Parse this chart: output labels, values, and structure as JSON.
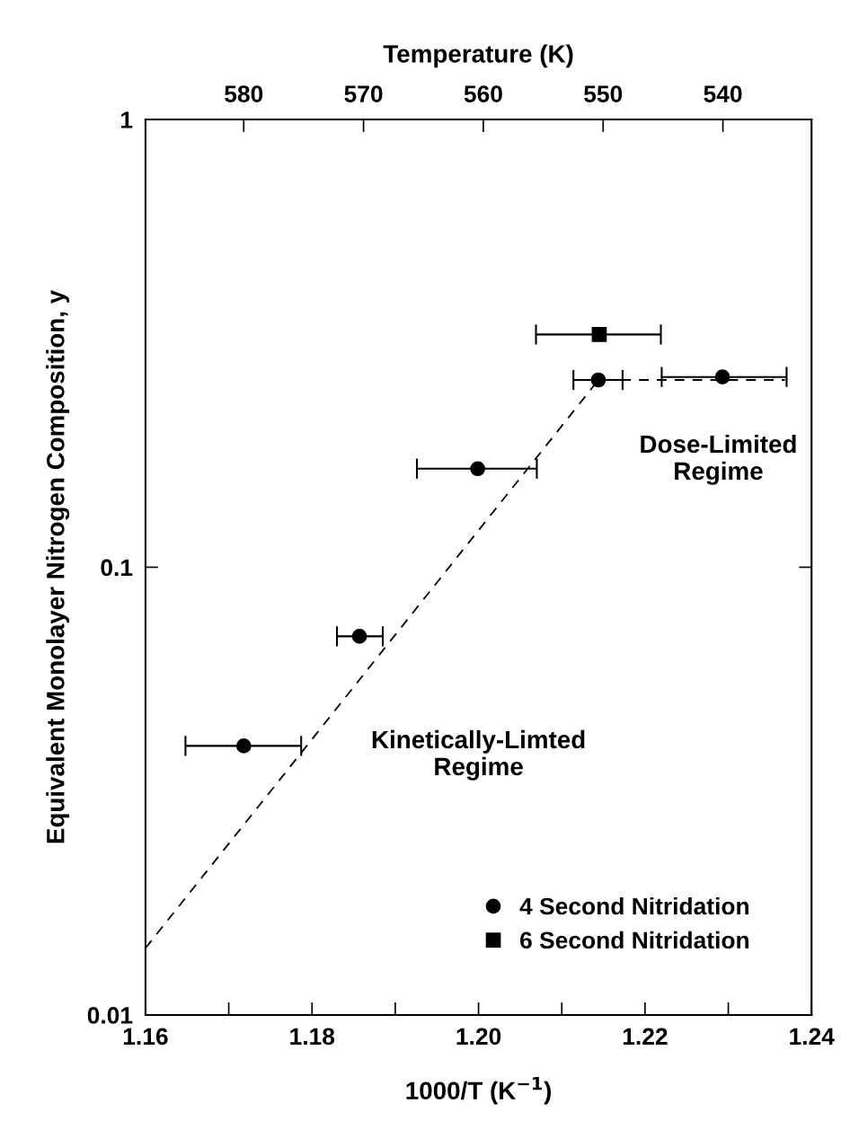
{
  "chart_data": {
    "type": "scatter",
    "xlabel": "1000/T (K$^{−1}$)",
    "ylabel": "Equivalent Monolayer Nitrogen Composition, y",
    "x2label": "Temperature (K)",
    "xlim": [
      1.16,
      1.24
    ],
    "xticks": [
      {
        "value": 1.16,
        "label": "1.16"
      },
      {
        "value": 1.17,
        "label": null
      },
      {
        "value": 1.18,
        "label": "1.18"
      },
      {
        "value": 1.19,
        "label": null
      },
      {
        "value": 1.2,
        "label": "1.20"
      },
      {
        "value": 1.21,
        "label": null
      },
      {
        "value": 1.22,
        "label": "1.22"
      },
      {
        "value": 1.23,
        "label": null
      },
      {
        "value": 1.24,
        "label": "1.24"
      }
    ],
    "x2lim": [
      588.2,
      532.6
    ],
    "x2ticks": [
      580,
      570,
      560,
      550,
      540
    ],
    "log": "y",
    "ylim": [
      0.01,
      1
    ],
    "yticks": [
      0.01,
      0.1,
      1
    ],
    "grid": false,
    "legend": "bottom right",
    "series": [
      {
        "name": "4 Second Nitridation",
        "marker": "circle",
        "color": "#000000",
        "x": [
          1.1718,
          1.1857,
          1.1999,
          1.2144,
          1.2293
        ],
        "values": [
          0.0399,
          0.0701,
          0.166,
          0.262,
          0.266
        ],
        "xerrors": [
          [
            1.1648,
            1.1787
          ],
          [
            1.183,
            1.1885
          ],
          [
            1.1926,
            1.207
          ],
          [
            1.2114,
            1.2173
          ],
          [
            1.222,
            1.237
          ]
        ]
      },
      {
        "name": "6 Second Nitridation",
        "marker": "square",
        "color": "#000000",
        "x": [
          1.2145
        ],
        "values": [
          0.331
        ],
        "xerrors": [
          [
            1.2069,
            1.2219
          ]
        ]
      },
      {
        "type": "line",
        "line_style": "dashed",
        "marker": "none",
        "color": "#000000",
        "x": [
          1.16,
          1.2144,
          1.2368
        ],
        "values": [
          0.0141,
          0.262,
          0.262
        ]
      }
    ],
    "annotations": [
      "Dose-Limited\nRegime",
      "Kinetically-Limted\nRegime"
    ]
  }
}
